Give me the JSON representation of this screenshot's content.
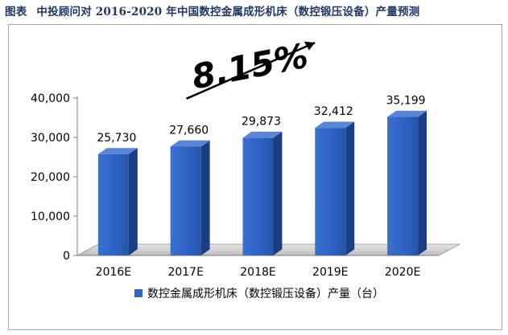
{
  "figure": {
    "label": "图表",
    "title": "中投顾问对 2016-2020 年中国数控金属成形机床（数控锻压设备）产量预测"
  },
  "chart_data": {
    "type": "bar",
    "style": "3d",
    "categories": [
      "2016E",
      "2017E",
      "2018E",
      "2019E",
      "2020E"
    ],
    "series": [
      {
        "name": "数控金属成形机床（数控锻压设备）产量（台）",
        "values": [
          25730,
          27660,
          29873,
          32412,
          35199
        ],
        "labels": [
          "25,730",
          "27,660",
          "29,873",
          "32,412",
          "35,199"
        ]
      }
    ],
    "yticks": [
      "0",
      "10,000",
      "20,000",
      "30,000",
      "40,000"
    ],
    "ylim": [
      0,
      40000
    ],
    "ytick_step": 10000,
    "growth_annotation": "8.15%",
    "legend_position": "bottom",
    "grid": false,
    "colors": {
      "bar_front": "#2e63c4",
      "bar_side": "#1b3f85",
      "bar_top": "#5b86d8",
      "floor": "#c8c8c8",
      "axis": "#7f7f7f",
      "text": "#000000",
      "title": "#1f3864"
    }
  }
}
